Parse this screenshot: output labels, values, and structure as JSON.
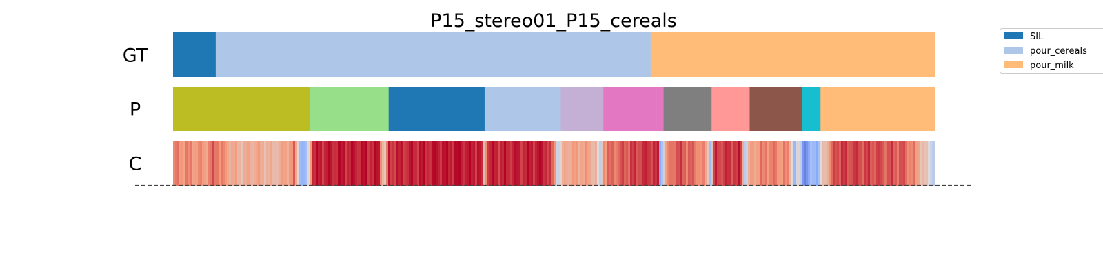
{
  "chart_data": {
    "type": "segmentation-strips",
    "title": "P15_stereo01_P15_cereals",
    "rows": [
      {
        "label": "GT",
        "kind": "segments",
        "segments": [
          {
            "start": 0.0,
            "end": 0.056,
            "color": "#1f77b4"
          },
          {
            "start": 0.056,
            "end": 0.627,
            "color": "#aec7e8"
          },
          {
            "start": 0.627,
            "end": 1.0,
            "color": "#ffbb78"
          }
        ]
      },
      {
        "label": "P",
        "kind": "segments",
        "segments": [
          {
            "start": 0.0,
            "end": 0.18,
            "color": "#bcbd22"
          },
          {
            "start": 0.18,
            "end": 0.283,
            "color": "#98df8a"
          },
          {
            "start": 0.283,
            "end": 0.409,
            "color": "#1f77b4"
          },
          {
            "start": 0.409,
            "end": 0.509,
            "color": "#aec7e8"
          },
          {
            "start": 0.509,
            "end": 0.565,
            "color": "#c5b0d5"
          },
          {
            "start": 0.565,
            "end": 0.644,
            "color": "#e377c2"
          },
          {
            "start": 0.644,
            "end": 0.707,
            "color": "#7f7f7f"
          },
          {
            "start": 0.707,
            "end": 0.757,
            "color": "#ff9896"
          },
          {
            "start": 0.757,
            "end": 0.826,
            "color": "#8c564b"
          },
          {
            "start": 0.826,
            "end": 0.85,
            "color": "#17becf"
          },
          {
            "start": 0.85,
            "end": 1.0,
            "color": "#ffbb78"
          }
        ]
      },
      {
        "label": "C",
        "kind": "confidence",
        "colormap": "coolwarm",
        "profile": [
          [
            0.0,
            0.78
          ],
          [
            0.045,
            0.74
          ],
          [
            0.055,
            0.85
          ],
          [
            0.07,
            0.72
          ],
          [
            0.09,
            0.65
          ],
          [
            0.11,
            0.7
          ],
          [
            0.13,
            0.64
          ],
          [
            0.15,
            0.72
          ],
          [
            0.16,
            0.8
          ],
          [
            0.168,
            0.3
          ],
          [
            0.172,
            0.25
          ],
          [
            0.176,
            0.3
          ],
          [
            0.182,
            0.95
          ],
          [
            0.27,
            0.96
          ],
          [
            0.278,
            0.55
          ],
          [
            0.283,
            0.93
          ],
          [
            0.36,
            0.97
          ],
          [
            0.405,
            0.96
          ],
          [
            0.409,
            0.6
          ],
          [
            0.413,
            0.94
          ],
          [
            0.49,
            0.96
          ],
          [
            0.5,
            0.8
          ],
          [
            0.505,
            0.4
          ],
          [
            0.509,
            0.55
          ],
          [
            0.515,
            0.7
          ],
          [
            0.54,
            0.72
          ],
          [
            0.556,
            0.65
          ],
          [
            0.56,
            0.3
          ],
          [
            0.565,
            0.78
          ],
          [
            0.6,
            0.88
          ],
          [
            0.63,
            0.93
          ],
          [
            0.637,
            0.9
          ],
          [
            0.64,
            0.1
          ],
          [
            0.644,
            0.6
          ],
          [
            0.65,
            0.75
          ],
          [
            0.66,
            0.88
          ],
          [
            0.69,
            0.8
          ],
          [
            0.7,
            0.7
          ],
          [
            0.705,
            0.35
          ],
          [
            0.71,
            0.9
          ],
          [
            0.745,
            0.92
          ],
          [
            0.752,
            0.35
          ],
          [
            0.757,
            0.7
          ],
          [
            0.78,
            0.8
          ],
          [
            0.81,
            0.75
          ],
          [
            0.816,
            0.3
          ],
          [
            0.822,
            0.55
          ],
          [
            0.827,
            0.2
          ],
          [
            0.832,
            0.15
          ],
          [
            0.84,
            0.35
          ],
          [
            0.848,
            0.25
          ],
          [
            0.853,
            0.6
          ],
          [
            0.87,
            0.9
          ],
          [
            0.92,
            0.88
          ],
          [
            0.96,
            0.85
          ],
          [
            0.975,
            0.75
          ],
          [
            0.99,
            0.55
          ],
          [
            1.0,
            0.4
          ]
        ]
      }
    ],
    "legend": {
      "placement": "top-right",
      "entries": [
        {
          "label": "SIL",
          "color": "#1f77b4"
        },
        {
          "label": "pour_cereals",
          "color": "#aec7e8"
        },
        {
          "label": "pour_milk",
          "color": "#ffbb78"
        }
      ]
    }
  }
}
